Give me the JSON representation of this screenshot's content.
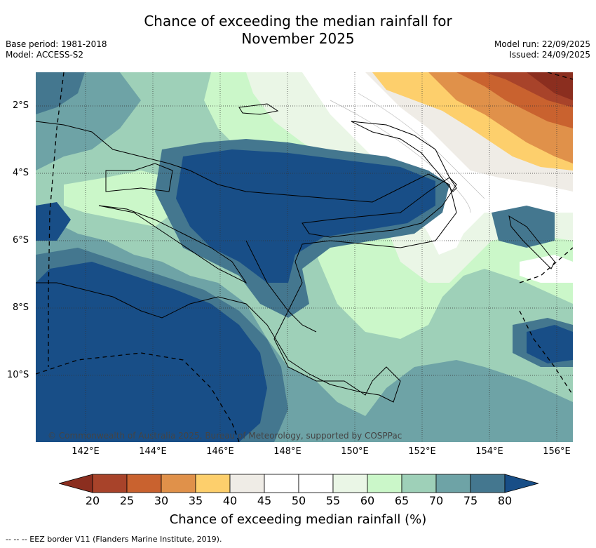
{
  "title_line1": "Chance of exceeding the median rainfall for",
  "title_line2": "November 2025",
  "base_period": "Base period: 1981-2018",
  "model": "Model: ACCESS-S2",
  "model_run": "Model run: 22/09/2025",
  "issued": "Issued: 24/09/2025",
  "lat_labels": [
    "2°S",
    "4°S",
    "6°S",
    "8°S",
    "10°S"
  ],
  "lon_labels": [
    "142°E",
    "144°E",
    "146°E",
    "148°E",
    "150°E",
    "152°E",
    "154°E",
    "156°E"
  ],
  "copyright": "© Commonwealth of Australia 2025, Bureau of Meteorology, supported by COSPPac",
  "colorbar": {
    "ticks": [
      "20",
      "25",
      "30",
      "35",
      "40",
      "45",
      "50",
      "55",
      "60",
      "65",
      "70",
      "75",
      "80"
    ],
    "colors": [
      "#a8432a",
      "#c9622f",
      "#e0914a",
      "#fdcf6c",
      "#efece6",
      "#ffffff",
      "#ffffff",
      "#eaf6e6",
      "#cbf7c9",
      "#9ed0b8",
      "#6ea3a6",
      "#44778f"
    ],
    "under_color": "#8b2e1f",
    "over_color": "#184e87",
    "label": "Chance of exceeding median rainfall (%)"
  },
  "footer": "-- -- -- EEZ border V11 (Flanders Marine Institute, 2019)."
}
